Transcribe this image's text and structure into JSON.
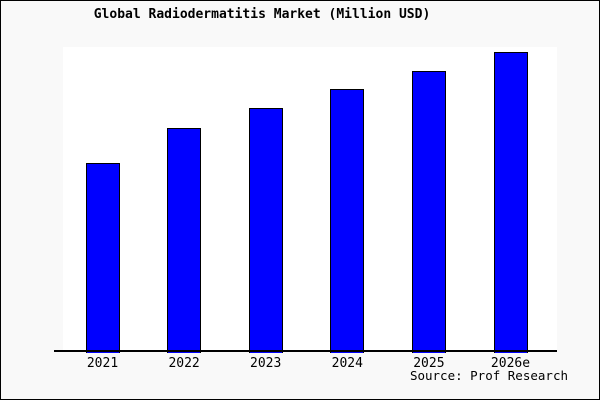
{
  "page": {
    "background_color": "#f9f9f9",
    "plot_background_color": "#ffffff",
    "frame_border_color": "#000000"
  },
  "chart_data": {
    "type": "bar",
    "title": "Global Radiodermatitis Market (Million USD)",
    "categories": [
      "2021",
      "2022",
      "2023",
      "2024",
      "2025",
      "2026e"
    ],
    "values": [
      190,
      225,
      245,
      264,
      282,
      301
    ],
    "values_note": "y-axis has no tick labels; values are relative bar heights read in pixels (proportional to market size)",
    "xlabel": "",
    "ylabel": "",
    "ylim": [
      0,
      305
    ],
    "gridlines": false,
    "legend": false,
    "y_axis_labels_visible": false,
    "bar_color": "#0000ff",
    "bar_border_color": "#000000",
    "axis_color": "#000000"
  },
  "source": {
    "text": "Source: Prof Research"
  }
}
